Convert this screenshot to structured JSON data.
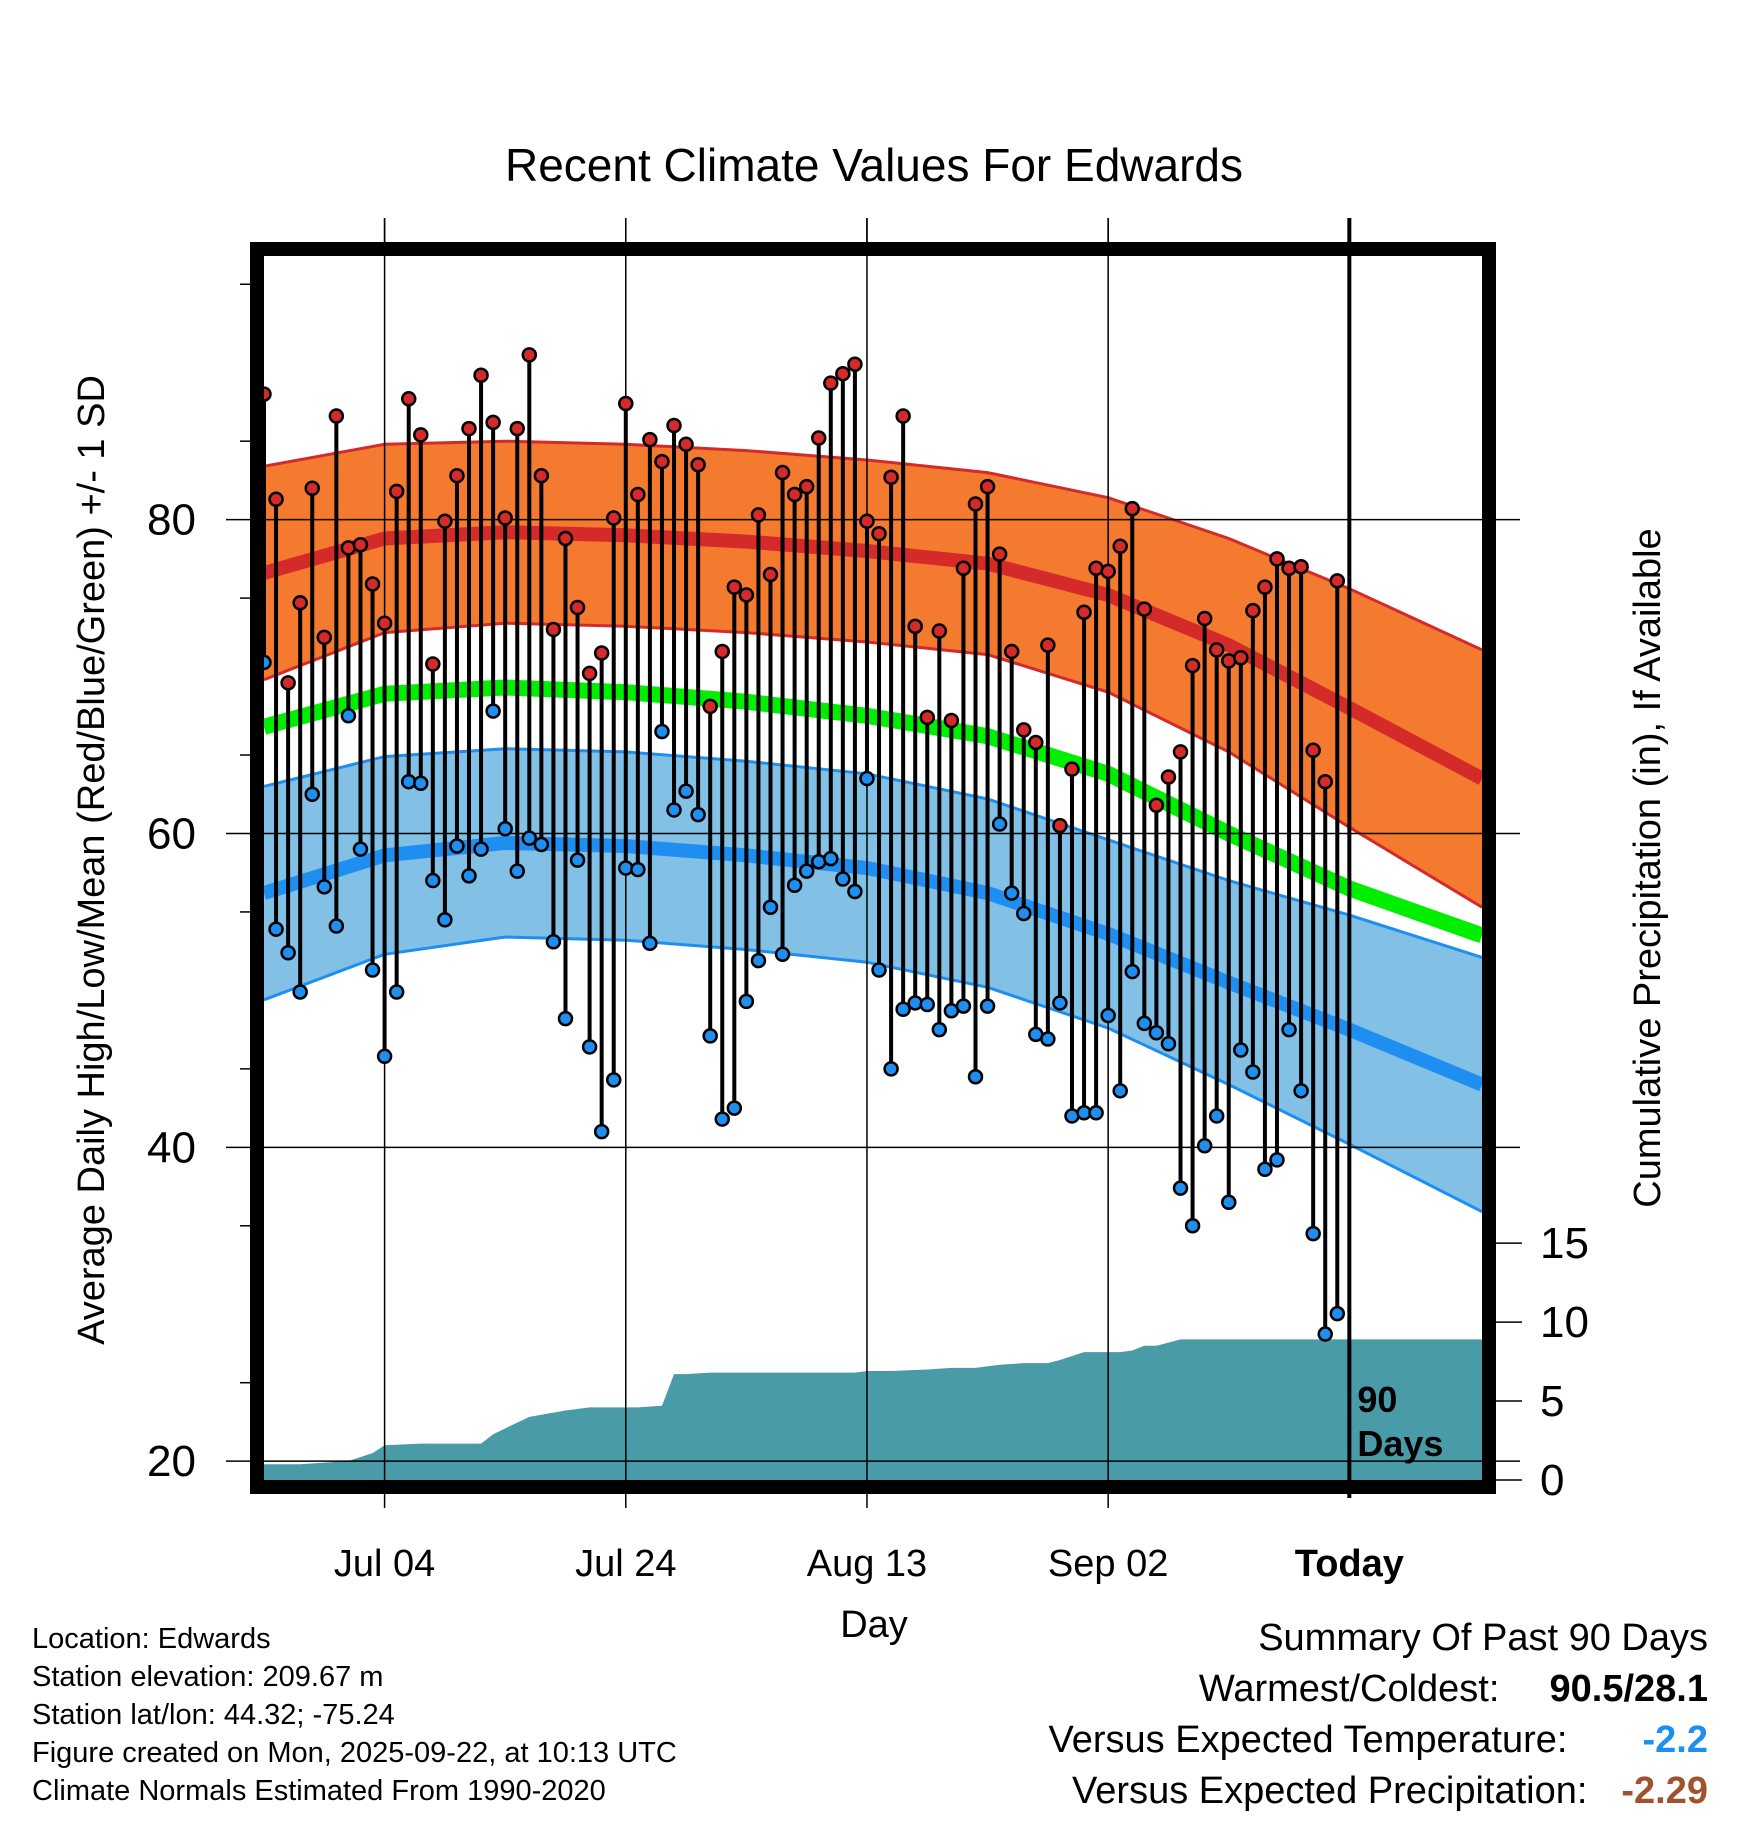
{
  "chart_data": {
    "type": "line",
    "title": "Recent Climate Values For Edwards",
    "xlabel": "Day",
    "ylabel": "Average Daily High/Low/Mean (Red/Blue/Green) +/- 1 SD",
    "y2label": "Cumulative Precipitation (in), If Available",
    "xlim": [
      0,
      101
    ],
    "ylim": [
      18.8,
      96.8
    ],
    "y2lim": [
      0,
      77.5
    ],
    "x_ticks": [
      {
        "x": 10,
        "label": "Jul 04"
      },
      {
        "x": 30,
        "label": "Jul 24"
      },
      {
        "x": 50,
        "label": "Aug 13"
      },
      {
        "x": 70,
        "label": "Sep 02"
      },
      {
        "x": 90,
        "label": "Today"
      }
    ],
    "y_ticks": [
      20,
      40,
      60,
      80
    ],
    "y2_ticks": [
      0,
      5,
      10,
      15
    ],
    "today_x": 90,
    "today_label": [
      "90",
      "Days"
    ],
    "colors": {
      "high_band": "#f47a30",
      "high_line": "#d42a2a",
      "low_band": "#82c0e6",
      "low_line": "#1e8ff0",
      "mean_line": "#00ee00",
      "precip": "#4a9ba8",
      "high_dot": "#d42a2a",
      "low_dot": "#1e8ff0"
    },
    "normals": {
      "x": [
        0,
        10,
        20,
        30,
        40,
        50,
        60,
        70,
        80,
        90,
        101
      ],
      "high_mean": [
        76.6,
        78.8,
        79.2,
        79.0,
        78.6,
        78.0,
        77.2,
        75.2,
        72.0,
        68.0,
        63.5
      ],
      "high_sd": [
        6.8,
        6.0,
        5.8,
        5.8,
        5.8,
        5.8,
        5.8,
        6.2,
        6.8,
        7.6,
        8.2
      ],
      "mean": [
        66.8,
        68.9,
        69.3,
        69.0,
        68.4,
        67.5,
        66.2,
        63.8,
        60.0,
        56.5,
        53.5
      ],
      "low_mean": [
        56.2,
        58.6,
        59.4,
        59.2,
        58.6,
        57.8,
        56.2,
        53.6,
        50.5,
        47.5,
        44.0
      ],
      "low_sd": [
        6.8,
        6.3,
        6.0,
        6.0,
        6.0,
        6.0,
        6.0,
        6.0,
        6.5,
        7.3,
        8.1
      ]
    },
    "observations": {
      "day": [
        0,
        1,
        2,
        3,
        4,
        5,
        6,
        7,
        8,
        9,
        10,
        11,
        12,
        13,
        14,
        15,
        16,
        17,
        18,
        19,
        20,
        21,
        22,
        23,
        24,
        25,
        26,
        27,
        28,
        29,
        30,
        31,
        32,
        33,
        34,
        35,
        36,
        37,
        38,
        39,
        40,
        41,
        42,
        43,
        44,
        45,
        46,
        47,
        48,
        49,
        50,
        51,
        52,
        53,
        54,
        55,
        56,
        57,
        58,
        59,
        60,
        61,
        62,
        63,
        64,
        65,
        66,
        67,
        68,
        69,
        70,
        71,
        72,
        73,
        74,
        75,
        76,
        77,
        78,
        79,
        80,
        81,
        82,
        83,
        84,
        85,
        86,
        87,
        88,
        89
      ],
      "high": [
        88.0,
        81.3,
        69.6,
        74.7,
        82.0,
        72.5,
        86.6,
        78.2,
        78.4,
        75.9,
        73.4,
        81.8,
        87.7,
        85.4,
        70.8,
        79.9,
        82.8,
        85.8,
        89.2,
        86.2,
        80.1,
        85.8,
        90.5,
        82.8,
        73.0,
        78.8,
        74.4,
        70.2,
        71.5,
        80.1,
        87.4,
        81.6,
        85.1,
        83.7,
        86.0,
        84.8,
        83.5,
        68.1,
        71.6,
        75.7,
        75.2,
        80.3,
        76.5,
        83.0,
        81.6,
        82.1,
        85.2,
        88.7,
        89.3,
        89.9,
        79.9,
        79.1,
        82.7,
        86.6,
        73.2,
        67.4,
        72.9,
        67.2,
        76.9,
        81.0,
        82.1,
        77.8,
        71.6,
        66.6,
        65.8,
        72.0,
        60.5,
        64.1,
        74.1,
        76.9,
        76.7,
        78.3,
        80.7,
        74.3,
        61.8,
        63.6,
        65.2,
        70.7,
        73.7,
        71.7,
        71.0,
        71.2,
        74.2,
        75.7,
        77.5,
        76.9,
        77.0,
        65.3,
        63.3,
        76.1
      ],
      "low": [
        70.9,
        53.9,
        52.4,
        49.9,
        62.5,
        56.6,
        54.1,
        67.5,
        59.0,
        51.3,
        45.8,
        49.9,
        63.3,
        63.2,
        57.0,
        54.5,
        59.2,
        57.3,
        59.0,
        67.8,
        60.3,
        57.6,
        59.7,
        59.3,
        53.1,
        48.2,
        58.3,
        46.4,
        41.0,
        44.3,
        57.8,
        57.7,
        53.0,
        66.5,
        61.5,
        62.7,
        61.2,
        47.1,
        41.8,
        42.5,
        49.3,
        51.9,
        55.3,
        52.3,
        56.7,
        57.6,
        58.2,
        58.4,
        57.1,
        56.3,
        63.5,
        51.3,
        45.0,
        48.8,
        49.2,
        49.1,
        47.5,
        48.7,
        49.0,
        44.5,
        49.0,
        60.6,
        56.2,
        54.9,
        47.2,
        46.9,
        49.2,
        42.0,
        42.2,
        42.2,
        48.4,
        43.6,
        51.2,
        47.9,
        47.3,
        46.6,
        37.4,
        35.0,
        40.1,
        42.0,
        36.5,
        46.2,
        44.8,
        38.6,
        39.2,
        47.5,
        43.6,
        34.5,
        28.1,
        29.4
      ]
    },
    "precipitation": {
      "day": [
        0,
        3,
        5,
        7,
        9,
        10,
        13,
        15,
        18,
        19,
        22,
        25,
        27,
        30,
        31,
        33,
        34,
        35,
        37,
        42,
        47,
        49,
        50,
        52,
        55,
        57,
        59,
        61,
        63,
        65,
        66,
        68,
        70,
        71,
        72,
        73,
        74,
        75,
        76,
        78,
        80,
        90,
        101
      ],
      "value": [
        1.0,
        1.0,
        1.1,
        1.2,
        1.7,
        2.2,
        2.3,
        2.3,
        2.3,
        2.9,
        4.0,
        4.4,
        4.6,
        4.6,
        4.6,
        4.7,
        6.7,
        6.7,
        6.8,
        6.8,
        6.8,
        6.8,
        6.9,
        6.9,
        7.0,
        7.1,
        7.1,
        7.3,
        7.4,
        7.4,
        7.6,
        8.1,
        8.1,
        8.1,
        8.2,
        8.5,
        8.5,
        8.7,
        8.9,
        8.9,
        8.9,
        8.9,
        8.9
      ]
    }
  },
  "footer": {
    "location": "Location: Edwards",
    "elevation": "Station elevation: 209.67 m",
    "latlon": "Station lat/lon: 44.32; -75.24",
    "created": "Figure created on Mon, 2025-09-22, at 10:13 UTC",
    "normals": "Climate Normals Estimated From 1990-2020"
  },
  "summary": {
    "heading": "Summary Of Past 90 Days",
    "warmest_label": "Warmest/Coldest:",
    "warmest_value": "90.5/28.1",
    "temp_label": "Versus Expected Temperature:",
    "temp_value": "-2.2",
    "temp_color": "#1e8ff0",
    "precip_label": "Versus Expected Precipitation:",
    "precip_value": "-2.29",
    "precip_color": "#a0522d"
  }
}
